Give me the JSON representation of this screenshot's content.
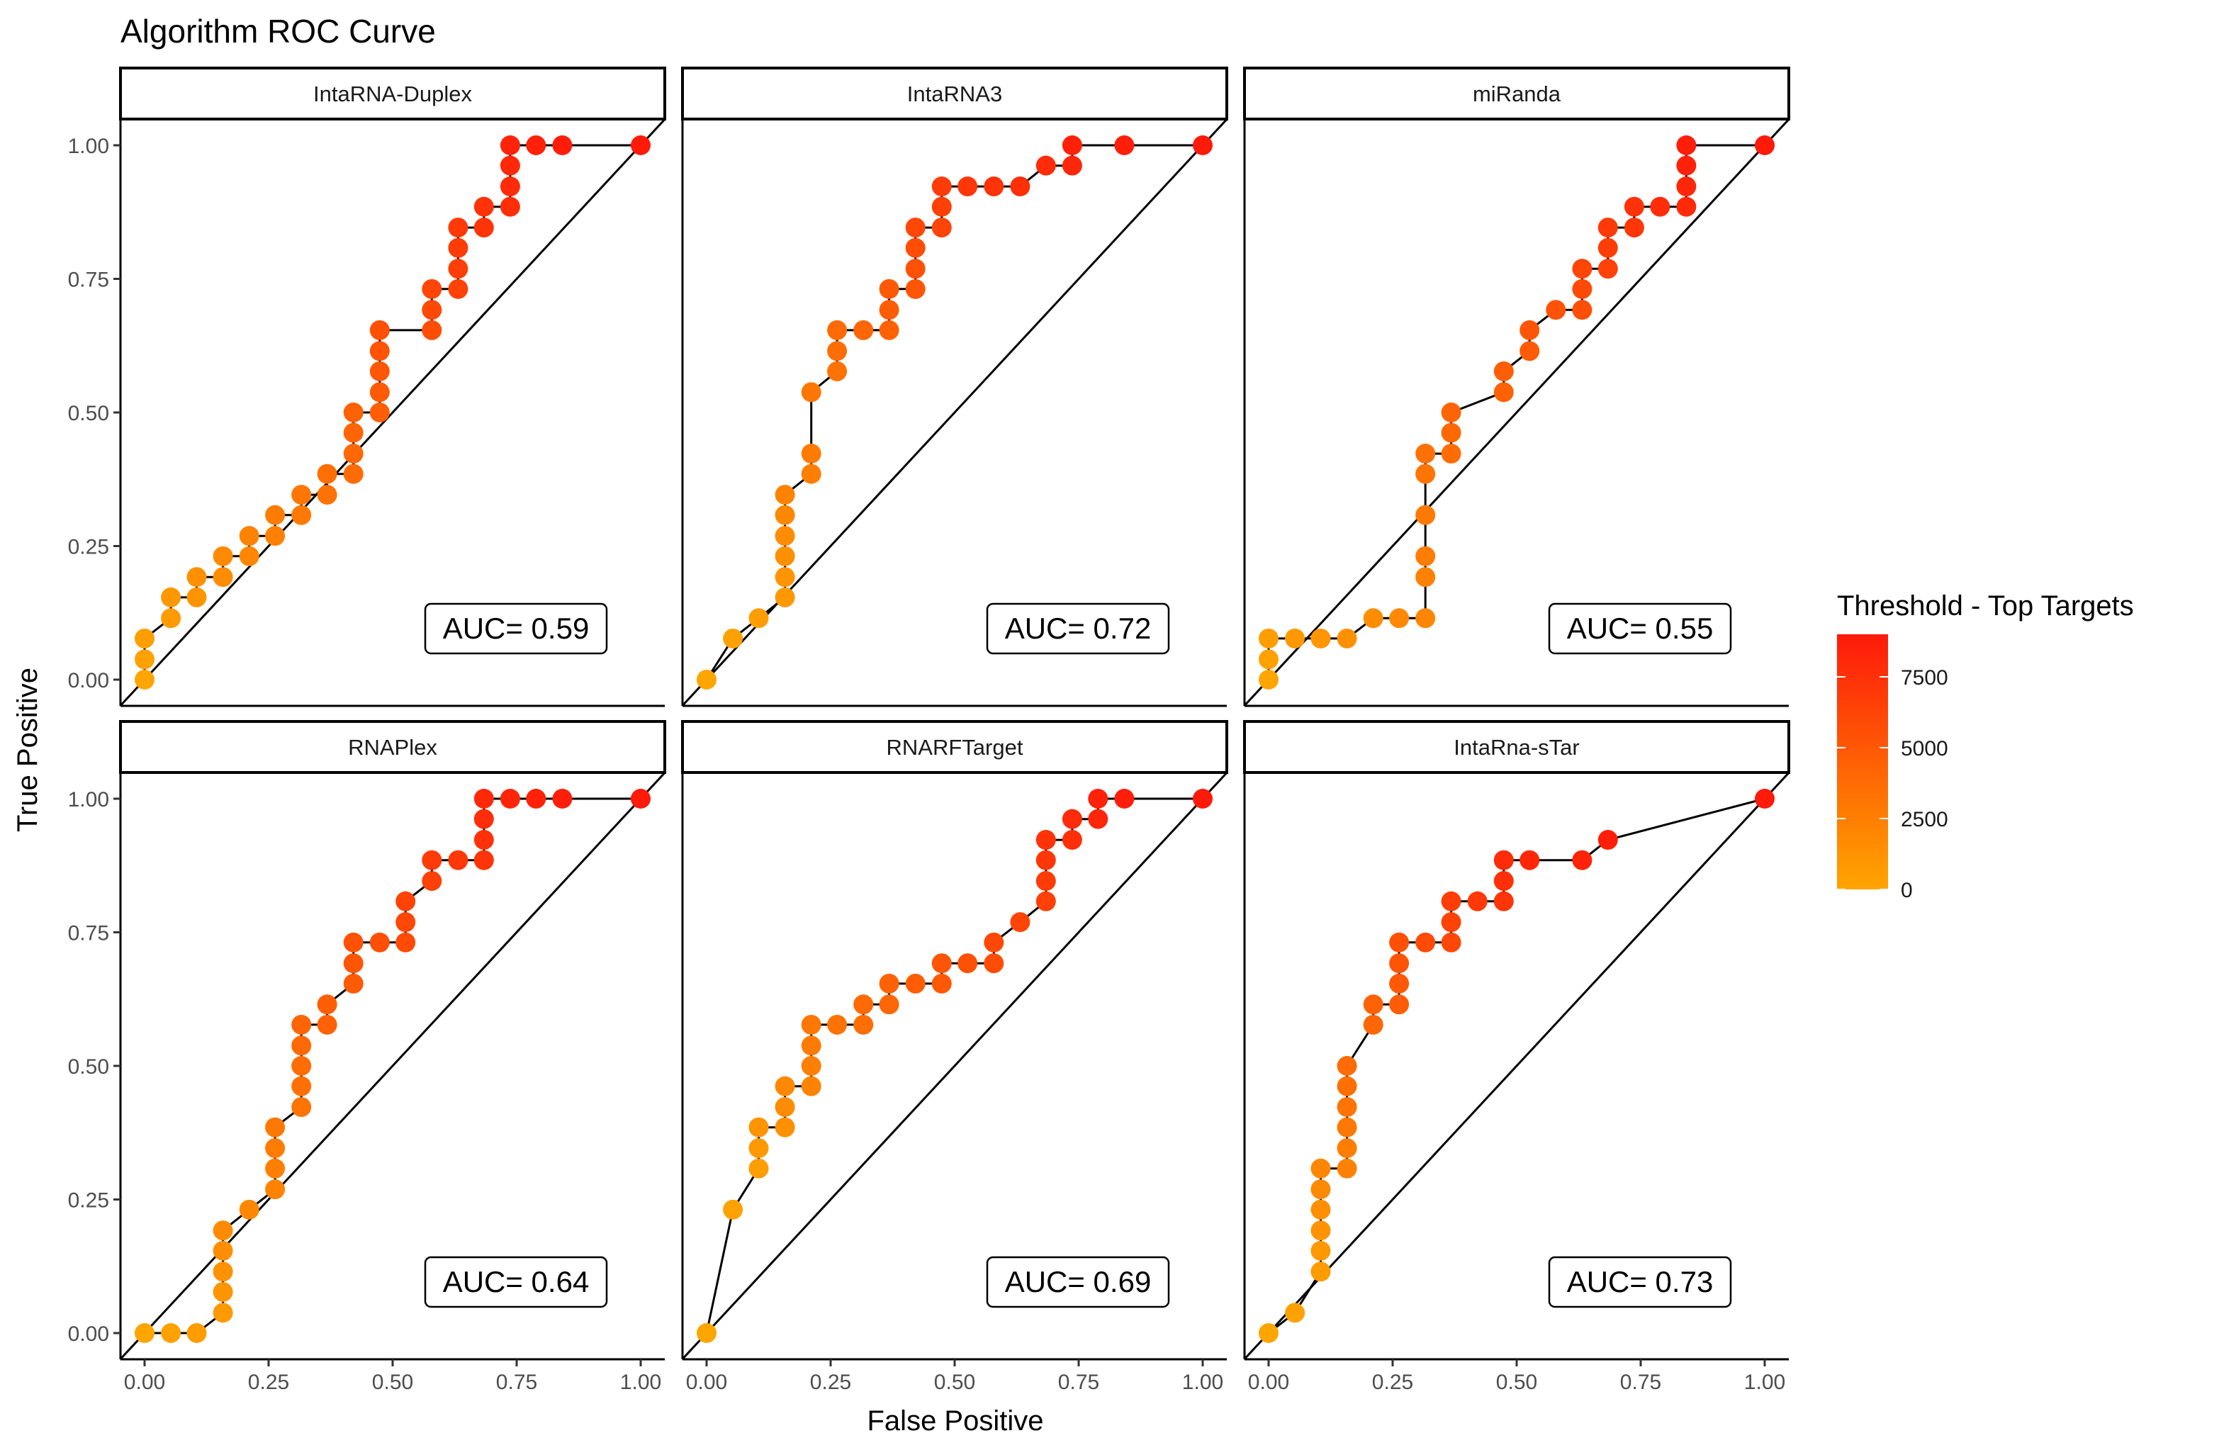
{
  "chart_data": {
    "type": "scatter",
    "title": "Algorithm ROC Curve",
    "xlabel": "False Positive",
    "ylabel": "True Positive",
    "xlim": [
      0,
      1
    ],
    "ylim": [
      0,
      1
    ],
    "x_ticks": [
      "0.00",
      "0.25",
      "0.50",
      "0.75",
      "1.00"
    ],
    "y_ticks": [
      "0.00",
      "0.25",
      "0.50",
      "0.75",
      "1.00"
    ],
    "tick_values": [
      0,
      0.25,
      0.5,
      0.75,
      1
    ],
    "reference_line": "diagonal",
    "legend": {
      "title": "Threshold - Top Targets",
      "labels": [
        "7500",
        "5000",
        "2500",
        "0"
      ],
      "label_values": [
        7500,
        5000,
        2500,
        0
      ],
      "range": [
        0,
        9000
      ],
      "low_color": "#FFA500",
      "high_color": "#FF1A0A",
      "position": "right"
    },
    "panels": [
      {
        "name": "IntaRNA-Duplex",
        "auc_label": "AUC= 0.59",
        "points": [
          [
            0,
            0
          ],
          [
            0,
            0.038
          ],
          [
            0,
            0.077
          ],
          [
            0.053,
            0.115
          ],
          [
            0.053,
            0.154
          ],
          [
            0.105,
            0.154
          ],
          [
            0.105,
            0.192
          ],
          [
            0.158,
            0.192
          ],
          [
            0.158,
            0.231
          ],
          [
            0.211,
            0.231
          ],
          [
            0.211,
            0.269
          ],
          [
            0.263,
            0.269
          ],
          [
            0.263,
            0.308
          ],
          [
            0.316,
            0.308
          ],
          [
            0.316,
            0.346
          ],
          [
            0.368,
            0.346
          ],
          [
            0.368,
            0.385
          ],
          [
            0.421,
            0.385
          ],
          [
            0.421,
            0.423
          ],
          [
            0.421,
            0.462
          ],
          [
            0.421,
            0.5
          ],
          [
            0.474,
            0.5
          ],
          [
            0.474,
            0.538
          ],
          [
            0.474,
            0.577
          ],
          [
            0.474,
            0.615
          ],
          [
            0.474,
            0.654
          ],
          [
            0.579,
            0.654
          ],
          [
            0.579,
            0.692
          ],
          [
            0.579,
            0.731
          ],
          [
            0.632,
            0.731
          ],
          [
            0.632,
            0.769
          ],
          [
            0.632,
            0.808
          ],
          [
            0.632,
            0.846
          ],
          [
            0.684,
            0.846
          ],
          [
            0.684,
            0.885
          ],
          [
            0.737,
            0.885
          ],
          [
            0.737,
            0.923
          ],
          [
            0.737,
            0.962
          ],
          [
            0.737,
            1.0
          ],
          [
            0.789,
            1.0
          ],
          [
            0.842,
            1.0
          ],
          [
            1.0,
            1.0
          ]
        ]
      },
      {
        "name": "IntaRNA3",
        "auc_label": "AUC= 0.72",
        "points": [
          [
            0,
            0
          ],
          [
            0.053,
            0.077
          ],
          [
            0.105,
            0.115
          ],
          [
            0.158,
            0.154
          ],
          [
            0.158,
            0.192
          ],
          [
            0.158,
            0.231
          ],
          [
            0.158,
            0.269
          ],
          [
            0.158,
            0.308
          ],
          [
            0.158,
            0.346
          ],
          [
            0.211,
            0.385
          ],
          [
            0.211,
            0.423
          ],
          [
            0.211,
            0.538
          ],
          [
            0.263,
            0.577
          ],
          [
            0.263,
            0.615
          ],
          [
            0.263,
            0.654
          ],
          [
            0.316,
            0.654
          ],
          [
            0.368,
            0.654
          ],
          [
            0.368,
            0.692
          ],
          [
            0.368,
            0.731
          ],
          [
            0.421,
            0.731
          ],
          [
            0.421,
            0.769
          ],
          [
            0.421,
            0.808
          ],
          [
            0.421,
            0.846
          ],
          [
            0.474,
            0.846
          ],
          [
            0.474,
            0.885
          ],
          [
            0.474,
            0.923
          ],
          [
            0.526,
            0.923
          ],
          [
            0.579,
            0.923
          ],
          [
            0.632,
            0.923
          ],
          [
            0.684,
            0.962
          ],
          [
            0.737,
            0.962
          ],
          [
            0.737,
            1.0
          ],
          [
            0.842,
            1.0
          ],
          [
            1.0,
            1.0
          ]
        ]
      },
      {
        "name": "miRanda",
        "auc_label": "AUC= 0.55",
        "points": [
          [
            0,
            0
          ],
          [
            0,
            0.038
          ],
          [
            0,
            0.077
          ],
          [
            0.053,
            0.077
          ],
          [
            0.105,
            0.077
          ],
          [
            0.158,
            0.077
          ],
          [
            0.211,
            0.115
          ],
          [
            0.263,
            0.115
          ],
          [
            0.316,
            0.115
          ],
          [
            0.316,
            0.192
          ],
          [
            0.316,
            0.231
          ],
          [
            0.316,
            0.308
          ],
          [
            0.316,
            0.385
          ],
          [
            0.316,
            0.423
          ],
          [
            0.368,
            0.423
          ],
          [
            0.368,
            0.462
          ],
          [
            0.368,
            0.5
          ],
          [
            0.474,
            0.538
          ],
          [
            0.474,
            0.577
          ],
          [
            0.526,
            0.615
          ],
          [
            0.526,
            0.654
          ],
          [
            0.579,
            0.692
          ],
          [
            0.632,
            0.692
          ],
          [
            0.632,
            0.731
          ],
          [
            0.632,
            0.769
          ],
          [
            0.684,
            0.769
          ],
          [
            0.684,
            0.808
          ],
          [
            0.684,
            0.846
          ],
          [
            0.737,
            0.846
          ],
          [
            0.737,
            0.885
          ],
          [
            0.789,
            0.885
          ],
          [
            0.842,
            0.885
          ],
          [
            0.842,
            0.923
          ],
          [
            0.842,
            0.962
          ],
          [
            0.842,
            1.0
          ],
          [
            1.0,
            1.0
          ]
        ]
      },
      {
        "name": "RNAPlex",
        "auc_label": "AUC= 0.64",
        "points": [
          [
            0,
            0
          ],
          [
            0.053,
            0
          ],
          [
            0.105,
            0
          ],
          [
            0.158,
            0.038
          ],
          [
            0.158,
            0.077
          ],
          [
            0.158,
            0.115
          ],
          [
            0.158,
            0.154
          ],
          [
            0.158,
            0.192
          ],
          [
            0.211,
            0.231
          ],
          [
            0.263,
            0.269
          ],
          [
            0.263,
            0.308
          ],
          [
            0.263,
            0.346
          ],
          [
            0.263,
            0.385
          ],
          [
            0.316,
            0.423
          ],
          [
            0.316,
            0.462
          ],
          [
            0.316,
            0.5
          ],
          [
            0.316,
            0.538
          ],
          [
            0.316,
            0.577
          ],
          [
            0.368,
            0.577
          ],
          [
            0.368,
            0.615
          ],
          [
            0.421,
            0.654
          ],
          [
            0.421,
            0.692
          ],
          [
            0.421,
            0.731
          ],
          [
            0.474,
            0.731
          ],
          [
            0.526,
            0.731
          ],
          [
            0.526,
            0.769
          ],
          [
            0.526,
            0.808
          ],
          [
            0.579,
            0.846
          ],
          [
            0.579,
            0.885
          ],
          [
            0.632,
            0.885
          ],
          [
            0.684,
            0.885
          ],
          [
            0.684,
            0.923
          ],
          [
            0.684,
            0.962
          ],
          [
            0.684,
            1.0
          ],
          [
            0.737,
            1.0
          ],
          [
            0.789,
            1.0
          ],
          [
            0.842,
            1.0
          ],
          [
            1.0,
            1.0
          ]
        ]
      },
      {
        "name": "RNARFTarget",
        "auc_label": "AUC= 0.69",
        "points": [
          [
            0,
            0
          ],
          [
            0.053,
            0.231
          ],
          [
            0.105,
            0.308
          ],
          [
            0.105,
            0.346
          ],
          [
            0.105,
            0.385
          ],
          [
            0.158,
            0.385
          ],
          [
            0.158,
            0.423
          ],
          [
            0.158,
            0.462
          ],
          [
            0.211,
            0.462
          ],
          [
            0.211,
            0.5
          ],
          [
            0.211,
            0.538
          ],
          [
            0.211,
            0.577
          ],
          [
            0.263,
            0.577
          ],
          [
            0.316,
            0.577
          ],
          [
            0.316,
            0.615
          ],
          [
            0.368,
            0.615
          ],
          [
            0.368,
            0.654
          ],
          [
            0.421,
            0.654
          ],
          [
            0.474,
            0.654
          ],
          [
            0.474,
            0.692
          ],
          [
            0.526,
            0.692
          ],
          [
            0.579,
            0.692
          ],
          [
            0.579,
            0.731
          ],
          [
            0.632,
            0.769
          ],
          [
            0.684,
            0.808
          ],
          [
            0.684,
            0.846
          ],
          [
            0.684,
            0.885
          ],
          [
            0.684,
            0.923
          ],
          [
            0.737,
            0.923
          ],
          [
            0.737,
            0.962
          ],
          [
            0.789,
            0.962
          ],
          [
            0.789,
            1.0
          ],
          [
            0.842,
            1.0
          ],
          [
            1.0,
            1.0
          ]
        ]
      },
      {
        "name": "IntaRna-sTar",
        "auc_label": "AUC= 0.73",
        "points": [
          [
            0,
            0
          ],
          [
            0.053,
            0.038
          ],
          [
            0.105,
            0.115
          ],
          [
            0.105,
            0.154
          ],
          [
            0.105,
            0.192
          ],
          [
            0.105,
            0.231
          ],
          [
            0.105,
            0.269
          ],
          [
            0.105,
            0.308
          ],
          [
            0.158,
            0.308
          ],
          [
            0.158,
            0.346
          ],
          [
            0.158,
            0.385
          ],
          [
            0.158,
            0.423
          ],
          [
            0.158,
            0.462
          ],
          [
            0.158,
            0.5
          ],
          [
            0.211,
            0.577
          ],
          [
            0.211,
            0.615
          ],
          [
            0.263,
            0.615
          ],
          [
            0.263,
            0.654
          ],
          [
            0.263,
            0.692
          ],
          [
            0.263,
            0.731
          ],
          [
            0.316,
            0.731
          ],
          [
            0.368,
            0.731
          ],
          [
            0.368,
            0.769
          ],
          [
            0.368,
            0.808
          ],
          [
            0.421,
            0.808
          ],
          [
            0.474,
            0.808
          ],
          [
            0.474,
            0.846
          ],
          [
            0.474,
            0.885
          ],
          [
            0.526,
            0.885
          ],
          [
            0.632,
            0.885
          ],
          [
            0.684,
            0.923
          ],
          [
            1.0,
            1.0
          ]
        ]
      }
    ]
  }
}
